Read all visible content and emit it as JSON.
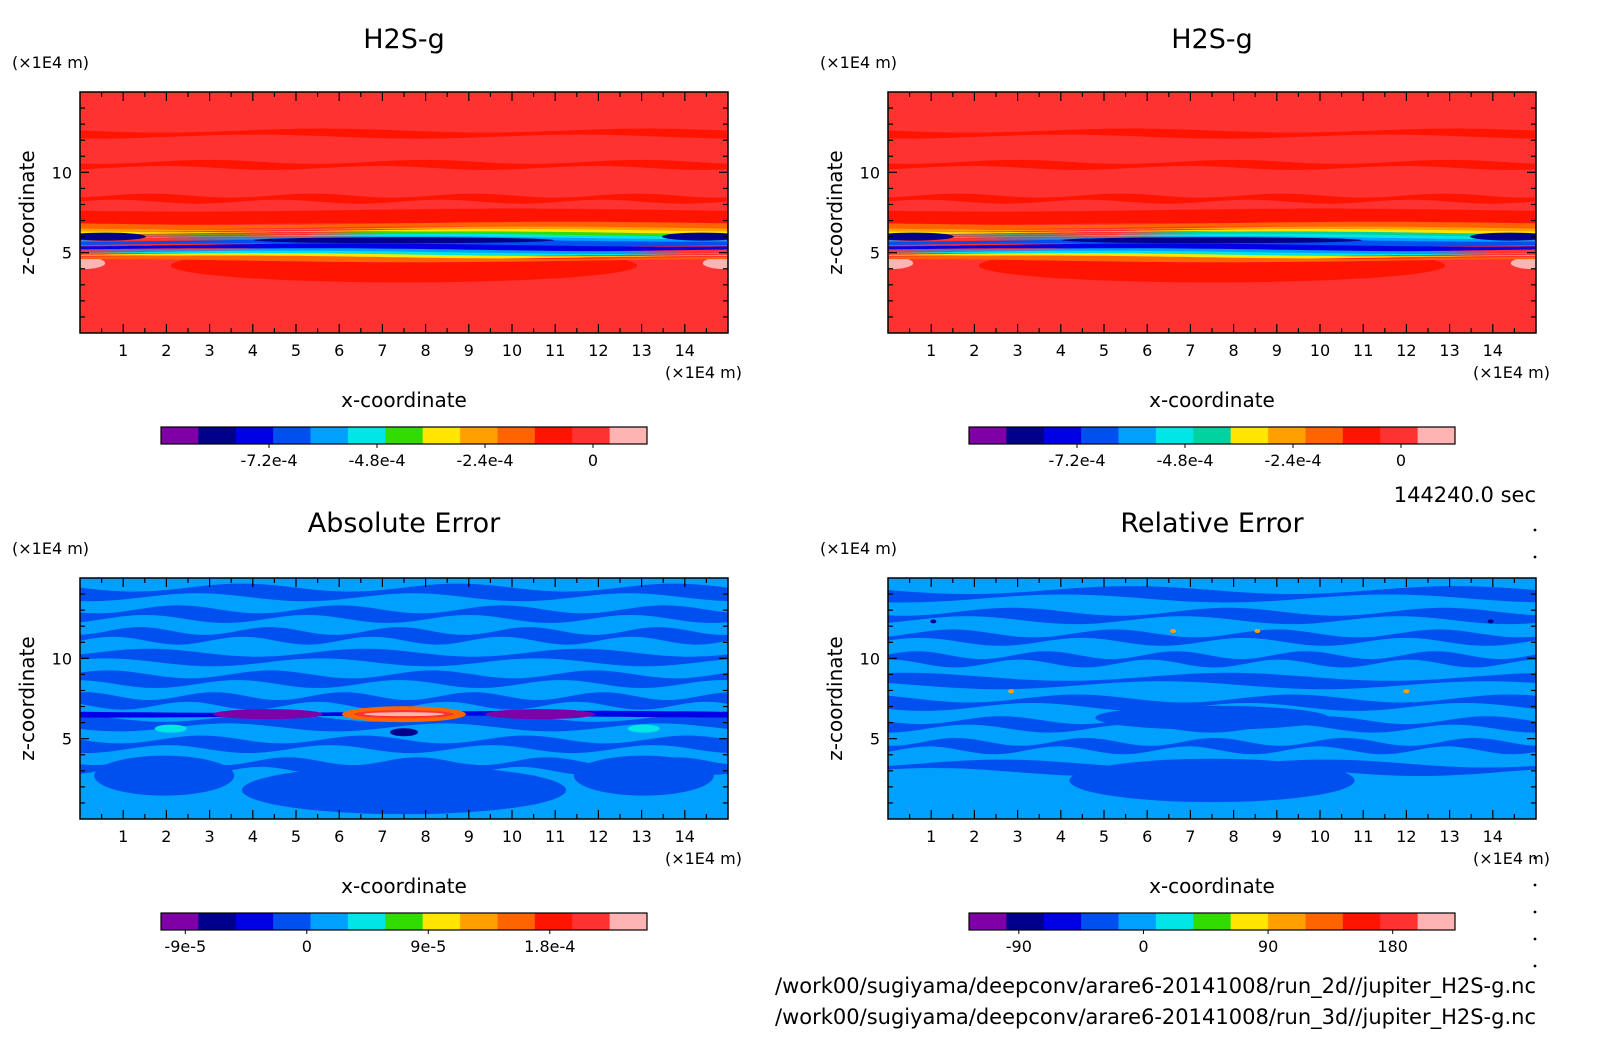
{
  "figure": {
    "time_label": "144240.0 sec",
    "file_paths": [
      "/work00/sugiyama/deepconv/arare6-20141008/run_2d//jupiter_H2S-g.nc",
      "/work00/sugiyama/deepconv/arare6-20141008/run_3d//jupiter_H2S-g.nc"
    ]
  },
  "chart_data": [
    {
      "type": "heatmap",
      "title": "H2S-g",
      "xlabel": "x-coordinate",
      "ylabel": "z-coordinate",
      "x_unit": "(×1E4 m)",
      "y_unit": "(×1E4 m)",
      "xlim": [
        0,
        15
      ],
      "ylim": [
        0,
        15
      ],
      "x_ticks": [
        1,
        2,
        3,
        4,
        5,
        6,
        7,
        8,
        9,
        10,
        11,
        12,
        13,
        14
      ],
      "y_ticks": [
        5,
        10
      ],
      "colorbar_colors": [
        "#8000a8",
        "#00008c",
        "#0000e6",
        "#0050f0",
        "#00a0ff",
        "#00e6e6",
        "#32dc00",
        "#ffe600",
        "#ffa000",
        "#ff6400",
        "#ff1400",
        "#ff3232",
        "#ffb4b4"
      ],
      "colorbar_labels": [
        "-7.2e-4",
        "-4.8e-4",
        "-2.4e-4",
        "0"
      ],
      "colorbar_label_values": [
        -0.00072,
        -0.00048,
        -0.00024,
        0
      ],
      "colorbar_range": [
        -0.00096,
        0.00012
      ]
    },
    {
      "type": "heatmap",
      "title": "H2S-g",
      "xlabel": "x-coordinate",
      "ylabel": "z-coordinate",
      "x_unit": "(×1E4 m)",
      "y_unit": "(×1E4 m)",
      "xlim": [
        0,
        15
      ],
      "ylim": [
        0,
        15
      ],
      "x_ticks": [
        1,
        2,
        3,
        4,
        5,
        6,
        7,
        8,
        9,
        10,
        11,
        12,
        13,
        14
      ],
      "y_ticks": [
        5,
        10
      ],
      "colorbar_colors": [
        "#8000a8",
        "#00008c",
        "#0000e6",
        "#0050f0",
        "#00a0ff",
        "#00e6e6",
        "#00d2a0",
        "#ffe600",
        "#ffa000",
        "#ff6400",
        "#ff1400",
        "#ff3232",
        "#ffb4b4"
      ],
      "colorbar_labels": [
        "-7.2e-4",
        "-4.8e-4",
        "-2.4e-4",
        "0"
      ],
      "colorbar_label_values": [
        -0.00072,
        -0.00048,
        -0.00024,
        0
      ],
      "colorbar_range": [
        -0.00096,
        0.00012
      ]
    },
    {
      "type": "heatmap",
      "title": "Absolute Error",
      "xlabel": "x-coordinate",
      "ylabel": "z-coordinate",
      "x_unit": "(×1E4 m)",
      "y_unit": "(×1E4 m)",
      "xlim": [
        0,
        15
      ],
      "ylim": [
        0,
        15
      ],
      "x_ticks": [
        1,
        2,
        3,
        4,
        5,
        6,
        7,
        8,
        9,
        10,
        11,
        12,
        13,
        14
      ],
      "y_ticks": [
        5,
        10
      ],
      "colorbar_colors": [
        "#8000a8",
        "#00008c",
        "#0000e6",
        "#0050f0",
        "#00a0ff",
        "#00e6e6",
        "#32dc00",
        "#ffe600",
        "#ffa000",
        "#ff6400",
        "#ff1400",
        "#ff3232",
        "#ffb4b4"
      ],
      "colorbar_labels": [
        "-9e-5",
        "0",
        "9e-5",
        "1.8e-4"
      ],
      "colorbar_label_values": [
        -9e-05,
        0,
        9e-05,
        0.00018
      ],
      "colorbar_range": [
        -0.000108,
        0.000252
      ]
    },
    {
      "type": "heatmap",
      "title": "Relative Error",
      "xlabel": "x-coordinate",
      "ylabel": "z-coordinate",
      "x_unit": "(×1E4 m)",
      "y_unit": "(×1E4 m)",
      "xlim": [
        0,
        15
      ],
      "ylim": [
        0,
        15
      ],
      "x_ticks": [
        1,
        2,
        3,
        4,
        5,
        6,
        7,
        8,
        9,
        10,
        11,
        12,
        13,
        14
      ],
      "y_ticks": [
        5,
        10
      ],
      "colorbar_colors": [
        "#8000a8",
        "#00008c",
        "#0000e6",
        "#0050f0",
        "#00a0ff",
        "#00e6e6",
        "#32dc00",
        "#ffe600",
        "#ffa000",
        "#ff6400",
        "#ff1400",
        "#ff3232",
        "#ffb4b4"
      ],
      "colorbar_labels": [
        "-90",
        "0",
        "90",
        "180"
      ],
      "colorbar_label_values": [
        -90,
        0,
        90,
        180
      ],
      "colorbar_range": [
        -126,
        225
      ]
    }
  ]
}
